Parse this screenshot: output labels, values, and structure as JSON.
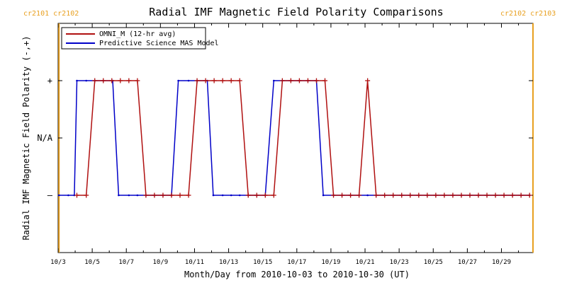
{
  "chart_data": {
    "type": "line",
    "title": "Radial IMF Magnetic Field Polarity Comparisons",
    "xlabel": "Month/Day from 2010-10-03 to 2010-10-30 (UT)",
    "ylabel": "Radial IMF Magnetic Field Polarity (-,+)",
    "x_unit": "day of October 2010",
    "xlim": [
      3.0,
      30.85
    ],
    "ylim": [
      -2,
      2
    ],
    "x_ticks": [
      3,
      5,
      7,
      9,
      11,
      13,
      15,
      17,
      19,
      21,
      23,
      25,
      27,
      29
    ],
    "x_tick_labels": [
      "10/3",
      "10/5",
      "10/7",
      "10/9",
      "10/11",
      "10/13",
      "10/15",
      "10/17",
      "10/19",
      "10/21",
      "10/23",
      "10/25",
      "10/27",
      "10/29"
    ],
    "y_ticks": [
      1,
      0,
      -1
    ],
    "y_tick_labels": [
      "+",
      "N/A",
      "–"
    ],
    "legend": {
      "placement": "top-left",
      "entries": [
        "OMNI_M (12-hr avg)",
        "Predictive Science MAS Model"
      ]
    },
    "carrington": {
      "left_label": "cr2101 cr2102",
      "right_label": "cr2102 cr2103",
      "boundaries": [
        3.05,
        30.85
      ],
      "color": "#e8a020"
    },
    "series": [
      {
        "name": "OMNI_M (12-hr avg)",
        "color": "#b01010",
        "marker": "plus",
        "x": [
          4.1,
          4.65,
          5.15,
          5.65,
          6.15,
          6.65,
          7.15,
          7.65,
          8.15,
          8.65,
          9.15,
          9.65,
          10.15,
          10.65,
          11.15,
          11.65,
          12.15,
          12.65,
          13.15,
          13.65,
          14.15,
          14.65,
          15.15,
          15.65,
          16.15,
          16.65,
          17.15,
          17.65,
          18.15,
          18.65,
          19.15,
          19.65,
          20.15,
          20.65,
          21.15,
          21.65,
          22.15,
          22.65,
          23.15,
          23.65,
          24.15,
          24.65,
          25.15,
          25.65,
          26.15,
          26.65,
          27.15,
          27.65,
          28.15,
          28.65,
          29.15,
          29.65,
          30.15,
          30.65
        ],
        "y": [
          -1,
          -1,
          1,
          1,
          1,
          1,
          1,
          1,
          -1,
          -1,
          -1,
          -1,
          -1,
          -1,
          1,
          1,
          1,
          1,
          1,
          1,
          -1,
          -1,
          -1,
          -1,
          1,
          1,
          1,
          1,
          1,
          1,
          -1,
          -1,
          -1,
          -1,
          1,
          -1,
          -1,
          -1,
          -1,
          -1,
          -1,
          -1,
          -1,
          -1,
          -1,
          -1,
          -1,
          -1,
          -1,
          -1,
          -1,
          -1,
          -1,
          -1
        ]
      },
      {
        "name": "Predictive Science MAS Model",
        "color": "#0000c8",
        "marker": "dot",
        "x": [
          3.05,
          3.6,
          3.95,
          4.1,
          4.65,
          5.15,
          5.65,
          6.2,
          6.55,
          7.15,
          7.65,
          8.15,
          8.65,
          9.15,
          9.65,
          10.05,
          10.65,
          11.15,
          11.75,
          12.1,
          12.65,
          13.15,
          13.65,
          14.15,
          14.65,
          15.15,
          15.65,
          16.15,
          16.65,
          17.15,
          17.65,
          18.15,
          18.55,
          19.15,
          19.65,
          20.15,
          20.65,
          21.15,
          21.65,
          22.15,
          22.65,
          23.15,
          23.65,
          24.15,
          24.65,
          25.15,
          25.65,
          26.15,
          26.65,
          27.15,
          27.65,
          28.15,
          28.65,
          29.15,
          29.65,
          30.15,
          30.65
        ],
        "y": [
          -1,
          -1,
          -1,
          1,
          1,
          1,
          1,
          1,
          -1,
          -1,
          -1,
          -1,
          -1,
          -1,
          -1,
          1,
          1,
          1,
          1,
          -1,
          -1,
          -1,
          -1,
          -1,
          -1,
          -1,
          1,
          1,
          1,
          1,
          1,
          1,
          -1,
          -1,
          -1,
          -1,
          -1,
          -1,
          -1,
          -1,
          -1,
          -1,
          -1,
          -1,
          -1,
          -1,
          -1,
          -1,
          -1,
          -1,
          -1,
          -1,
          -1,
          -1,
          -1,
          -1,
          -1
        ]
      }
    ]
  }
}
